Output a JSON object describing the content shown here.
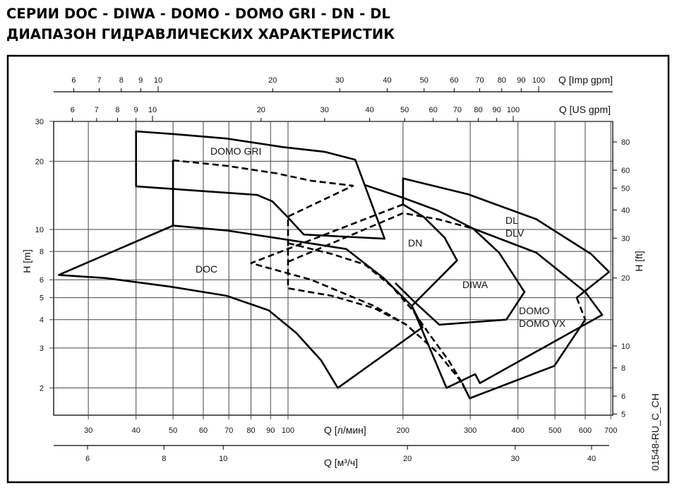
{
  "header": {
    "title_line1": "СЕРИИ DOC - DIWA - DOMO - DOMO GRI - DN - DL",
    "title_line2": "ДИАПАЗОН ГИДРАВЛИЧЕСКИХ ХАРАКТЕРИСТИК"
  },
  "drawing_code": "01548-RU_C_CH",
  "chart_data": {
    "type": "line",
    "title": "",
    "grid": true,
    "scale": "log-log",
    "x_axis_main": {
      "label": "Q [л/мин]",
      "ticks": [
        30,
        40,
        50,
        60,
        70,
        80,
        90,
        100,
        200,
        300,
        400,
        500,
        600,
        700
      ],
      "range": [
        24,
        708
      ]
    },
    "x_axis_m3h": {
      "label": "Q [м³/ч]",
      "ticks": [
        6,
        8,
        10,
        20,
        30,
        40
      ]
    },
    "x_axis_us_gpm": {
      "label": "Q [US gpm]",
      "ticks": [
        6,
        7,
        8,
        9,
        10,
        20,
        30,
        40,
        50,
        60,
        70,
        80,
        90,
        100
      ]
    },
    "x_axis_imp_gpm": {
      "label": "Q [Imp gpm]",
      "ticks": [
        6,
        7,
        8,
        9,
        10,
        20,
        30,
        40,
        50,
        60,
        70,
        80,
        90,
        100
      ]
    },
    "y_axis_left": {
      "label": "H [m]",
      "ticks": [
        2,
        3,
        4,
        5,
        6,
        8,
        10,
        20,
        30
      ],
      "range": [
        1.52,
        30
      ]
    },
    "y_axis_right": {
      "label": "H [ft]",
      "ticks": [
        5,
        6,
        8,
        10,
        20,
        30,
        40,
        50,
        60,
        80
      ]
    },
    "region_labels": [
      "DOMO GRI",
      "DOC",
      "DN",
      "DL",
      "DLV",
      "DIWA",
      "DOMO",
      "DOMO VX"
    ],
    "series": [
      {
        "style": "solid",
        "closed": true,
        "points": [
          [
            40,
            27.1
          ],
          [
            51,
            26.3
          ],
          [
            69,
            25.2
          ],
          [
            97,
            23.1
          ],
          [
            125,
            22.0
          ],
          [
            150,
            20.3
          ],
          [
            179,
            9.1
          ],
          [
            110,
            9.5
          ],
          [
            99,
            11.5
          ],
          [
            91,
            13.3
          ],
          [
            83,
            14.2
          ],
          [
            40,
            15.5
          ]
        ]
      },
      {
        "style": "dashed",
        "closed": false,
        "points": [
          [
            50,
            20.2
          ],
          [
            69,
            19.1
          ],
          [
            93,
            17.7
          ],
          [
            115,
            16.4
          ],
          [
            148,
            15.6
          ],
          [
            100,
            11.4
          ],
          [
            100,
            5.5
          ],
          [
            130,
            5.1
          ],
          [
            168,
            4.5
          ],
          [
            204,
            3.8
          ],
          [
            247,
            2.85
          ],
          [
            280,
            2.2
          ],
          [
            295,
            1.9
          ]
        ]
      },
      {
        "style": "solid",
        "closed": false,
        "points": [
          [
            50,
            20.2
          ],
          [
            50,
            10.4
          ]
        ]
      },
      {
        "style": "solid",
        "closed": true,
        "points": [
          [
            50,
            10.4
          ],
          [
            25.1,
            6.3
          ],
          [
            33.4,
            6.1
          ],
          [
            48.9,
            5.6
          ],
          [
            69,
            5.1
          ],
          [
            89,
            4.4
          ],
          [
            105,
            3.5
          ],
          [
            122,
            2.65
          ],
          [
            135,
            2.0
          ],
          [
            225,
            3.7
          ],
          [
            211,
            4.6
          ],
          [
            178,
            6.1
          ],
          [
            142,
            8.2
          ],
          [
            100,
            9.0
          ],
          [
            69,
            9.9
          ]
        ]
      },
      {
        "style": "dashed",
        "closed": false,
        "points": [
          [
            100,
            8.7
          ],
          [
            130,
            7.8
          ],
          [
            159,
            7.0
          ],
          [
            187,
            5.6
          ],
          [
            212,
            4.4
          ],
          [
            236,
            3.4
          ],
          [
            263,
            2.65
          ],
          [
            286,
            2.1
          ]
        ]
      },
      {
        "style": "dashed",
        "closed": false,
        "points": [
          [
            200,
            12.9
          ],
          [
            80,
            7.1
          ],
          [
            115,
            6.0
          ],
          [
            168,
            4.6
          ],
          [
            204,
            3.8
          ]
        ]
      },
      {
        "style": "dashed",
        "closed": false,
        "points": [
          [
            100,
            7.2
          ],
          [
            200,
            11.8
          ],
          [
            247,
            11.1
          ],
          [
            305,
            10.1
          ]
        ]
      },
      {
        "style": "solid",
        "closed": false,
        "points": [
          [
            200,
            12.9
          ],
          [
            226,
            11.4
          ],
          [
            257,
            9.2
          ],
          [
            277,
            7.3
          ],
          [
            211,
            4.6
          ]
        ]
      },
      {
        "style": "solid",
        "closed": false,
        "points": [
          [
            200,
            12.9
          ],
          [
            200,
            16.8
          ],
          [
            296,
            14.3
          ],
          [
            447,
            11.1
          ],
          [
            621,
            7.8
          ],
          [
            693,
            6.5
          ],
          [
            570,
            5.0
          ]
        ]
      },
      {
        "style": "dashed",
        "closed": false,
        "points": [
          [
            570,
            5.0
          ],
          [
            600,
            4.0
          ]
        ]
      },
      {
        "style": "solid",
        "closed": false,
        "points": [
          [
            600,
            4.0
          ],
          [
            498,
            2.5
          ],
          [
            299,
            1.8
          ],
          [
            286,
            2.1
          ]
        ]
      },
      {
        "style": "solid",
        "closed": false,
        "points": [
          [
            159,
            15.7
          ],
          [
            200,
            13.8
          ],
          [
            247,
            12.1
          ],
          [
            305,
            10.1
          ],
          [
            447,
            7.9
          ],
          [
            600,
            5.3
          ],
          [
            665,
            4.2
          ],
          [
            318,
            2.1
          ],
          [
            309,
            2.3
          ],
          [
            260,
            2.0
          ],
          [
            226,
            3.5
          ],
          [
            211,
            4.6
          ]
        ]
      },
      {
        "style": "solid",
        "closed": false,
        "points": [
          [
            305,
            10.1
          ],
          [
            357,
            7.9
          ],
          [
            416,
            5.3
          ],
          [
            373,
            4.0
          ],
          [
            249,
            3.8
          ],
          [
            214,
            4.8
          ],
          [
            191,
            5.8
          ]
        ]
      }
    ]
  }
}
